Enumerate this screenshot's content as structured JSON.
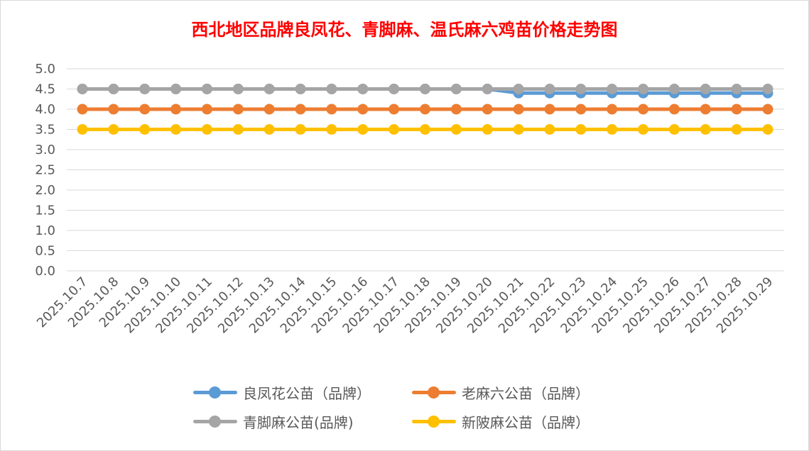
{
  "chart_data": {
    "type": "line",
    "title": "西北地区品牌良凤花、青脚麻、温氏麻六鸡苗价格走势图",
    "xlabel": "",
    "ylabel": "",
    "ylim": [
      0,
      5
    ],
    "yticks": [
      "0.0",
      "0.5",
      "1.0",
      "1.5",
      "2.0",
      "2.5",
      "3.0",
      "3.5",
      "4.0",
      "4.5",
      "5.0"
    ],
    "grid": true,
    "legend_position": "bottom",
    "categories": [
      "2025.10.7",
      "2025.10.8",
      "2025.10.9",
      "2025.10.10",
      "2025.10.11",
      "2025.10.12",
      "2025.10.13",
      "2025.10.14",
      "2025.10.15",
      "2025.10.16",
      "2025.10.17",
      "2025.10.18",
      "2025.10.19",
      "2025.10.20",
      "2025.10.21",
      "2025.10.22",
      "2025.10.23",
      "2025.10.24",
      "2025.10.25",
      "2025.10.26",
      "2025.10.27",
      "2025.10.28",
      "2025.10.29"
    ],
    "series": [
      {
        "name": "良凤花公苗（品牌）",
        "color": "#5b9bd5",
        "values": [
          4.5,
          4.5,
          4.5,
          4.5,
          4.5,
          4.5,
          4.5,
          4.5,
          4.5,
          4.5,
          4.5,
          4.5,
          4.5,
          4.5,
          4.4,
          4.4,
          4.4,
          4.4,
          4.4,
          4.4,
          4.4,
          4.4,
          4.4
        ]
      },
      {
        "name": "老麻六公苗（品牌）",
        "color": "#ed7d31",
        "values": [
          4.0,
          4.0,
          4.0,
          4.0,
          4.0,
          4.0,
          4.0,
          4.0,
          4.0,
          4.0,
          4.0,
          4.0,
          4.0,
          4.0,
          4.0,
          4.0,
          4.0,
          4.0,
          4.0,
          4.0,
          4.0,
          4.0,
          4.0
        ]
      },
      {
        "name": "青脚麻公苗(品牌)",
        "color": "#a5a5a5",
        "values": [
          4.5,
          4.5,
          4.5,
          4.5,
          4.5,
          4.5,
          4.5,
          4.5,
          4.5,
          4.5,
          4.5,
          4.5,
          4.5,
          4.5,
          4.5,
          4.5,
          4.5,
          4.5,
          4.5,
          4.5,
          4.5,
          4.5,
          4.5
        ]
      },
      {
        "name": "新陂麻公苗（品牌）",
        "color": "#ffc000",
        "values": [
          3.5,
          3.5,
          3.5,
          3.5,
          3.5,
          3.5,
          3.5,
          3.5,
          3.5,
          3.5,
          3.5,
          3.5,
          3.5,
          3.5,
          3.5,
          3.5,
          3.5,
          3.5,
          3.5,
          3.5,
          3.5,
          3.5,
          3.5
        ]
      }
    ]
  }
}
